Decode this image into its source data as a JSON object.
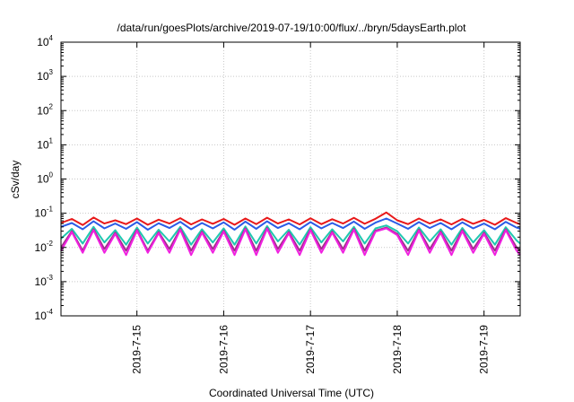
{
  "chart_data": {
    "type": "line",
    "title": "/data/run/goesPlots/archive/2019-07-19/10:00/flux/../bryn/5daysEarth.plot",
    "xlabel": "Coordinated Universal Time (UTC)",
    "ylabel": "cSv/day",
    "x_axis": {
      "type": "date",
      "range": [
        "2019-07-14T03:00",
        "2019-07-19T10:00"
      ],
      "ticks": [
        {
          "value": "2019-07-15T00:00",
          "label": "2019-7-15"
        },
        {
          "value": "2019-07-16T00:00",
          "label": "2019-7-16"
        },
        {
          "value": "2019-07-17T00:00",
          "label": "2019-7-17"
        },
        {
          "value": "2019-07-18T00:00",
          "label": "2019-7-18"
        },
        {
          "value": "2019-07-19T00:00",
          "label": "2019-7-19"
        }
      ]
    },
    "y_axis": {
      "scale": "log",
      "range": [
        0.0001,
        10000
      ],
      "ticks": [
        {
          "value": 0.0001,
          "base": "10",
          "exp": "-4"
        },
        {
          "value": 0.001,
          "base": "10",
          "exp": "-3"
        },
        {
          "value": 0.01,
          "base": "10",
          "exp": "-2"
        },
        {
          "value": 0.1,
          "base": "10",
          "exp": "-1"
        },
        {
          "value": 1,
          "base": "10",
          "exp": "0"
        },
        {
          "value": 10,
          "base": "10",
          "exp": "1"
        },
        {
          "value": 100,
          "base": "10",
          "exp": "2"
        },
        {
          "value": 1000,
          "base": "10",
          "exp": "3"
        },
        {
          "value": 10000,
          "base": "10",
          "exp": "4"
        }
      ]
    },
    "grid": true,
    "legend": "none",
    "colors": {
      "red": "#e8191a",
      "blue": "#2b5ce6",
      "teal": "#1fc7b0",
      "purple": "#a0308a",
      "magenta": "#f020e0"
    },
    "series": [
      {
        "color": "red",
        "points": [
          [
            "2019-07-14T03:00",
            0.052
          ],
          [
            "2019-07-14T06:00",
            0.068
          ],
          [
            "2019-07-14T09:00",
            0.045
          ],
          [
            "2019-07-14T12:00",
            0.075
          ],
          [
            "2019-07-14T15:00",
            0.05
          ],
          [
            "2019-07-14T18:00",
            0.062
          ],
          [
            "2019-07-14T21:00",
            0.048
          ],
          [
            "2019-07-15T00:00",
            0.07
          ],
          [
            "2019-07-15T03:00",
            0.046
          ],
          [
            "2019-07-15T06:00",
            0.065
          ],
          [
            "2019-07-15T09:00",
            0.05
          ],
          [
            "2019-07-15T12:00",
            0.072
          ],
          [
            "2019-07-15T15:00",
            0.047
          ],
          [
            "2019-07-15T18:00",
            0.066
          ],
          [
            "2019-07-15T21:00",
            0.049
          ],
          [
            "2019-07-16T00:00",
            0.068
          ],
          [
            "2019-07-16T03:00",
            0.046
          ],
          [
            "2019-07-16T06:00",
            0.07
          ],
          [
            "2019-07-16T09:00",
            0.048
          ],
          [
            "2019-07-16T12:00",
            0.074
          ],
          [
            "2019-07-16T15:00",
            0.05
          ],
          [
            "2019-07-16T18:00",
            0.066
          ],
          [
            "2019-07-16T21:00",
            0.047
          ],
          [
            "2019-07-17T00:00",
            0.071
          ],
          [
            "2019-07-17T03:00",
            0.048
          ],
          [
            "2019-07-17T06:00",
            0.067
          ],
          [
            "2019-07-17T09:00",
            0.05
          ],
          [
            "2019-07-17T12:00",
            0.073
          ],
          [
            "2019-07-17T15:00",
            0.049
          ],
          [
            "2019-07-17T18:00",
            0.069
          ],
          [
            "2019-07-17T21:00",
            0.105
          ],
          [
            "2019-07-18T00:00",
            0.062
          ],
          [
            "2019-07-18T03:00",
            0.048
          ],
          [
            "2019-07-18T06:00",
            0.07
          ],
          [
            "2019-07-18T09:00",
            0.05
          ],
          [
            "2019-07-18T12:00",
            0.066
          ],
          [
            "2019-07-18T15:00",
            0.047
          ],
          [
            "2019-07-18T18:00",
            0.068
          ],
          [
            "2019-07-18T21:00",
            0.049
          ],
          [
            "2019-07-19T00:00",
            0.064
          ],
          [
            "2019-07-19T03:00",
            0.046
          ],
          [
            "2019-07-19T06:00",
            0.072
          ],
          [
            "2019-07-19T09:00",
            0.052
          ],
          [
            "2019-07-19T10:00",
            0.048
          ]
        ]
      },
      {
        "color": "blue",
        "points": [
          [
            "2019-07-14T03:00",
            0.04
          ],
          [
            "2019-07-14T06:00",
            0.052
          ],
          [
            "2019-07-14T09:00",
            0.034
          ],
          [
            "2019-07-14T12:00",
            0.058
          ],
          [
            "2019-07-14T15:00",
            0.036
          ],
          [
            "2019-07-14T18:00",
            0.05
          ],
          [
            "2019-07-14T21:00",
            0.035
          ],
          [
            "2019-07-15T00:00",
            0.055
          ],
          [
            "2019-07-15T03:00",
            0.033
          ],
          [
            "2019-07-15T06:00",
            0.051
          ],
          [
            "2019-07-15T09:00",
            0.037
          ],
          [
            "2019-07-15T12:00",
            0.056
          ],
          [
            "2019-07-15T15:00",
            0.034
          ],
          [
            "2019-07-15T18:00",
            0.052
          ],
          [
            "2019-07-15T21:00",
            0.036
          ],
          [
            "2019-07-16T00:00",
            0.054
          ],
          [
            "2019-07-16T03:00",
            0.033
          ],
          [
            "2019-07-16T06:00",
            0.057
          ],
          [
            "2019-07-16T09:00",
            0.035
          ],
          [
            "2019-07-16T12:00",
            0.058
          ],
          [
            "2019-07-16T15:00",
            0.037
          ],
          [
            "2019-07-16T18:00",
            0.051
          ],
          [
            "2019-07-16T21:00",
            0.034
          ],
          [
            "2019-07-17T00:00",
            0.055
          ],
          [
            "2019-07-17T03:00",
            0.036
          ],
          [
            "2019-07-17T06:00",
            0.052
          ],
          [
            "2019-07-17T09:00",
            0.037
          ],
          [
            "2019-07-17T12:00",
            0.057
          ],
          [
            "2019-07-17T15:00",
            0.035
          ],
          [
            "2019-07-17T18:00",
            0.053
          ],
          [
            "2019-07-17T21:00",
            0.07
          ],
          [
            "2019-07-18T00:00",
            0.05
          ],
          [
            "2019-07-18T03:00",
            0.035
          ],
          [
            "2019-07-18T06:00",
            0.055
          ],
          [
            "2019-07-18T09:00",
            0.037
          ],
          [
            "2019-07-18T12:00",
            0.052
          ],
          [
            "2019-07-18T15:00",
            0.034
          ],
          [
            "2019-07-18T18:00",
            0.054
          ],
          [
            "2019-07-18T21:00",
            0.036
          ],
          [
            "2019-07-19T00:00",
            0.05
          ],
          [
            "2019-07-19T03:00",
            0.034
          ],
          [
            "2019-07-19T06:00",
            0.056
          ],
          [
            "2019-07-19T09:00",
            0.038
          ],
          [
            "2019-07-19T10:00",
            0.035
          ]
        ]
      },
      {
        "color": "teal",
        "points": [
          [
            "2019-07-14T03:00",
            0.018
          ],
          [
            "2019-07-14T06:00",
            0.035
          ],
          [
            "2019-07-14T09:00",
            0.013
          ],
          [
            "2019-07-14T12:00",
            0.04
          ],
          [
            "2019-07-14T15:00",
            0.014
          ],
          [
            "2019-07-14T18:00",
            0.032
          ],
          [
            "2019-07-14T21:00",
            0.012
          ],
          [
            "2019-07-15T00:00",
            0.038
          ],
          [
            "2019-07-15T03:00",
            0.013
          ],
          [
            "2019-07-15T06:00",
            0.033
          ],
          [
            "2019-07-15T09:00",
            0.015
          ],
          [
            "2019-07-15T12:00",
            0.04
          ],
          [
            "2019-07-15T15:00",
            0.012
          ],
          [
            "2019-07-15T18:00",
            0.034
          ],
          [
            "2019-07-15T21:00",
            0.014
          ],
          [
            "2019-07-16T00:00",
            0.036
          ],
          [
            "2019-07-16T03:00",
            0.012
          ],
          [
            "2019-07-16T06:00",
            0.041
          ],
          [
            "2019-07-16T09:00",
            0.013
          ],
          [
            "2019-07-16T12:00",
            0.042
          ],
          [
            "2019-07-16T15:00",
            0.015
          ],
          [
            "2019-07-16T18:00",
            0.033
          ],
          [
            "2019-07-16T21:00",
            0.012
          ],
          [
            "2019-07-17T00:00",
            0.039
          ],
          [
            "2019-07-17T03:00",
            0.014
          ],
          [
            "2019-07-17T06:00",
            0.034
          ],
          [
            "2019-07-17T09:00",
            0.015
          ],
          [
            "2019-07-17T12:00",
            0.04
          ],
          [
            "2019-07-17T15:00",
            0.013
          ],
          [
            "2019-07-17T18:00",
            0.036
          ],
          [
            "2019-07-17T21:00",
            0.044
          ],
          [
            "2019-07-18T00:00",
            0.03
          ],
          [
            "2019-07-18T03:00",
            0.013
          ],
          [
            "2019-07-18T06:00",
            0.038
          ],
          [
            "2019-07-18T09:00",
            0.015
          ],
          [
            "2019-07-18T12:00",
            0.034
          ],
          [
            "2019-07-18T15:00",
            0.012
          ],
          [
            "2019-07-18T18:00",
            0.037
          ],
          [
            "2019-07-18T21:00",
            0.014
          ],
          [
            "2019-07-19T00:00",
            0.032
          ],
          [
            "2019-07-19T03:00",
            0.012
          ],
          [
            "2019-07-19T06:00",
            0.039
          ],
          [
            "2019-07-19T09:00",
            0.016
          ],
          [
            "2019-07-19T10:00",
            0.013
          ]
        ]
      },
      {
        "color": "purple",
        "points": [
          [
            "2019-07-14T03:00",
            0.01
          ],
          [
            "2019-07-14T06:00",
            0.03
          ],
          [
            "2019-07-14T09:00",
            0.008
          ],
          [
            "2019-07-14T12:00",
            0.034
          ],
          [
            "2019-07-14T15:00",
            0.009
          ],
          [
            "2019-07-14T18:00",
            0.027
          ],
          [
            "2019-07-14T21:00",
            0.008
          ],
          [
            "2019-07-15T00:00",
            0.033
          ],
          [
            "2019-07-15T03:00",
            0.008
          ],
          [
            "2019-07-15T06:00",
            0.028
          ],
          [
            "2019-07-15T09:00",
            0.009
          ],
          [
            "2019-07-15T12:00",
            0.035
          ],
          [
            "2019-07-15T15:00",
            0.008
          ],
          [
            "2019-07-15T18:00",
            0.029
          ],
          [
            "2019-07-15T21:00",
            0.009
          ],
          [
            "2019-07-16T00:00",
            0.031
          ],
          [
            "2019-07-16T03:00",
            0.008
          ],
          [
            "2019-07-16T06:00",
            0.036
          ],
          [
            "2019-07-16T09:00",
            0.008
          ],
          [
            "2019-07-16T12:00",
            0.037
          ],
          [
            "2019-07-16T15:00",
            0.009
          ],
          [
            "2019-07-16T18:00",
            0.028
          ],
          [
            "2019-07-16T21:00",
            0.008
          ],
          [
            "2019-07-17T00:00",
            0.034
          ],
          [
            "2019-07-17T03:00",
            0.009
          ],
          [
            "2019-07-17T06:00",
            0.029
          ],
          [
            "2019-07-17T09:00",
            0.009
          ],
          [
            "2019-07-17T12:00",
            0.035
          ],
          [
            "2019-07-17T15:00",
            0.008
          ],
          [
            "2019-07-17T18:00",
            0.031
          ],
          [
            "2019-07-17T21:00",
            0.038
          ],
          [
            "2019-07-18T00:00",
            0.025
          ],
          [
            "2019-07-18T03:00",
            0.008
          ],
          [
            "2019-07-18T06:00",
            0.033
          ],
          [
            "2019-07-18T09:00",
            0.009
          ],
          [
            "2019-07-18T12:00",
            0.029
          ],
          [
            "2019-07-18T15:00",
            0.008
          ],
          [
            "2019-07-18T18:00",
            0.032
          ],
          [
            "2019-07-18T21:00",
            0.009
          ],
          [
            "2019-07-19T00:00",
            0.027
          ],
          [
            "2019-07-19T03:00",
            0.008
          ],
          [
            "2019-07-19T06:00",
            0.034
          ],
          [
            "2019-07-19T09:00",
            0.01
          ],
          [
            "2019-07-19T10:00",
            0.008
          ]
        ]
      },
      {
        "color": "magenta",
        "points": [
          [
            "2019-07-14T03:00",
            0.008
          ],
          [
            "2019-07-14T06:00",
            0.028
          ],
          [
            "2019-07-14T09:00",
            0.007
          ],
          [
            "2019-07-14T12:00",
            0.032
          ],
          [
            "2019-07-14T15:00",
            0.007
          ],
          [
            "2019-07-14T18:00",
            0.025
          ],
          [
            "2019-07-14T21:00",
            0.006
          ],
          [
            "2019-07-15T00:00",
            0.031
          ],
          [
            "2019-07-15T03:00",
            0.007
          ],
          [
            "2019-07-15T06:00",
            0.026
          ],
          [
            "2019-07-15T09:00",
            0.007
          ],
          [
            "2019-07-15T12:00",
            0.033
          ],
          [
            "2019-07-15T15:00",
            0.006
          ],
          [
            "2019-07-15T18:00",
            0.027
          ],
          [
            "2019-07-15T21:00",
            0.007
          ],
          [
            "2019-07-16T00:00",
            0.029
          ],
          [
            "2019-07-16T03:00",
            0.006
          ],
          [
            "2019-07-16T06:00",
            0.034
          ],
          [
            "2019-07-16T09:00",
            0.006
          ],
          [
            "2019-07-16T12:00",
            0.035
          ],
          [
            "2019-07-16T15:00",
            0.007
          ],
          [
            "2019-07-16T18:00",
            0.026
          ],
          [
            "2019-07-16T21:00",
            0.006
          ],
          [
            "2019-07-17T00:00",
            0.032
          ],
          [
            "2019-07-17T03:00",
            0.007
          ],
          [
            "2019-07-17T06:00",
            0.027
          ],
          [
            "2019-07-17T09:00",
            0.007
          ],
          [
            "2019-07-17T12:00",
            0.033
          ],
          [
            "2019-07-17T15:00",
            0.006
          ],
          [
            "2019-07-17T18:00",
            0.029
          ],
          [
            "2019-07-17T21:00",
            0.036
          ],
          [
            "2019-07-18T00:00",
            0.023
          ],
          [
            "2019-07-18T03:00",
            0.006
          ],
          [
            "2019-07-18T06:00",
            0.031
          ],
          [
            "2019-07-18T09:00",
            0.007
          ],
          [
            "2019-07-18T12:00",
            0.027
          ],
          [
            "2019-07-18T15:00",
            0.006
          ],
          [
            "2019-07-18T18:00",
            0.03
          ],
          [
            "2019-07-18T21:00",
            0.007
          ],
          [
            "2019-07-19T00:00",
            0.025
          ],
          [
            "2019-07-19T03:00",
            0.006
          ],
          [
            "2019-07-19T06:00",
            0.032
          ],
          [
            "2019-07-19T09:00",
            0.008
          ],
          [
            "2019-07-19T10:00",
            0.006
          ]
        ]
      }
    ]
  }
}
